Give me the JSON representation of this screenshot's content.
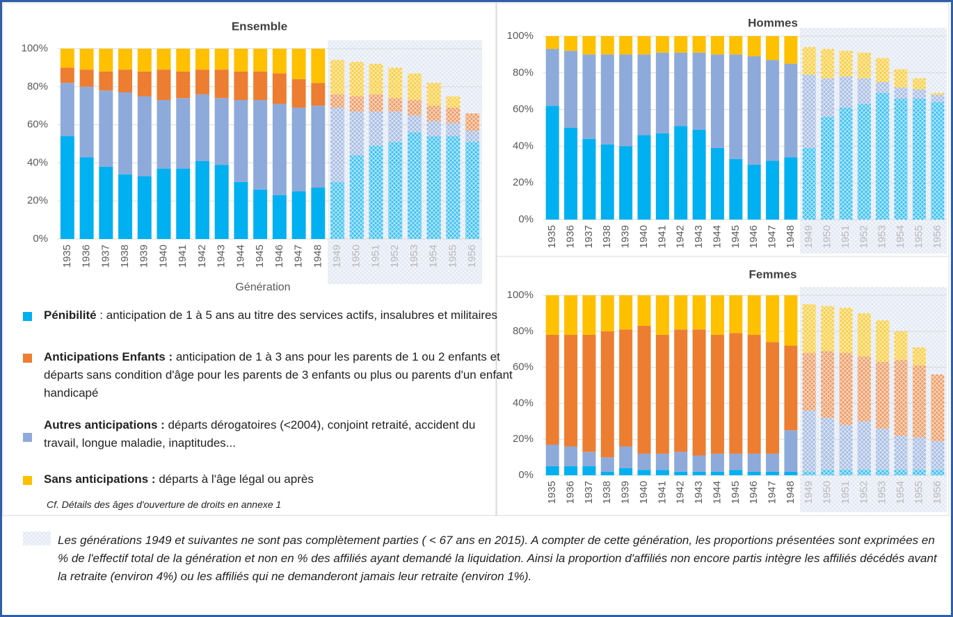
{
  "charts": [
    {
      "type": "stacked_bar",
      "title": "Ensemble",
      "xlabel": "Génération",
      "categories": [
        "1935",
        "1936",
        "1937",
        "1938",
        "1939",
        "1940",
        "1941",
        "1942",
        "1943",
        "1944",
        "1945",
        "1946",
        "1947",
        "1948",
        "1949",
        "1950",
        "1951",
        "1952",
        "1953",
        "1954",
        "1955",
        "1956"
      ],
      "hatched": [
        false,
        false,
        false,
        false,
        false,
        false,
        false,
        false,
        false,
        false,
        false,
        false,
        false,
        false,
        true,
        true,
        true,
        true,
        true,
        true,
        true,
        true
      ],
      "ylim": [
        0,
        100
      ],
      "yticks": [
        {
          "value": 0,
          "label": "0%"
        },
        {
          "value": 20,
          "label": "20%"
        },
        {
          "value": 40,
          "label": "40%"
        },
        {
          "value": 60,
          "label": "60%"
        },
        {
          "value": 80,
          "label": "80%"
        },
        {
          "value": 100,
          "label": "100%"
        }
      ],
      "grid": true,
      "series": [
        {
          "color": "#00b0f0",
          "values": [
            54,
            43,
            38,
            34,
            33,
            37,
            37,
            41,
            39,
            30,
            26,
            23,
            25,
            27,
            30,
            44,
            49,
            51,
            56,
            54,
            54,
            51
          ]
        },
        {
          "color": "#8eaadb",
          "values": [
            28,
            37,
            40,
            43,
            42,
            36,
            37,
            35,
            35,
            43,
            47,
            48,
            44,
            43,
            39,
            23,
            18,
            16,
            9,
            8,
            7,
            6
          ]
        },
        {
          "color": "#ed7d31",
          "values": [
            8,
            9,
            10,
            12,
            13,
            16,
            14,
            13,
            15,
            15,
            15,
            16,
            15,
            12,
            7,
            8,
            9,
            7,
            8,
            8,
            8,
            9
          ]
        },
        {
          "color": "#ffc000",
          "values": [
            10,
            11,
            12,
            11,
            12,
            11,
            12,
            11,
            11,
            12,
            12,
            13,
            16,
            18,
            18,
            18,
            16,
            16,
            14,
            12,
            6,
            0
          ]
        }
      ]
    },
    {
      "type": "stacked_bar",
      "title": "Hommes",
      "categories": [
        "1935",
        "1936",
        "1937",
        "1938",
        "1939",
        "1940",
        "1941",
        "1942",
        "1943",
        "1944",
        "1945",
        "1946",
        "1947",
        "1948",
        "1949",
        "1950",
        "1951",
        "1952",
        "1953",
        "1954",
        "1955",
        "1956"
      ],
      "hatched": [
        false,
        false,
        false,
        false,
        false,
        false,
        false,
        false,
        false,
        false,
        false,
        false,
        false,
        false,
        true,
        true,
        true,
        true,
        true,
        true,
        true,
        true
      ],
      "ylim": [
        0,
        100
      ],
      "yticks": [
        {
          "value": 0,
          "label": "0%"
        },
        {
          "value": 20,
          "label": "20%"
        },
        {
          "value": 40,
          "label": "40%"
        },
        {
          "value": 60,
          "label": "60%"
        },
        {
          "value": 80,
          "label": "80%"
        },
        {
          "value": 100,
          "label": "100%"
        }
      ],
      "grid": true,
      "series": [
        {
          "color": "#00b0f0",
          "values": [
            62,
            50,
            44,
            41,
            40,
            46,
            47,
            51,
            49,
            39,
            33,
            30,
            32,
            34,
            39,
            56,
            61,
            63,
            69,
            66,
            66,
            64
          ]
        },
        {
          "color": "#8eaadb",
          "values": [
            31,
            42,
            46,
            49,
            50,
            44,
            44,
            40,
            42,
            51,
            57,
            59,
            55,
            51,
            40,
            21,
            17,
            14,
            6,
            6,
            5,
            4
          ]
        },
        {
          "color": "#ed7d31",
          "values": [
            0,
            0,
            0,
            0,
            0,
            0,
            0,
            0,
            0,
            0,
            0,
            0,
            0,
            0,
            0,
            0,
            0,
            0,
            0,
            0,
            0,
            0
          ]
        },
        {
          "color": "#ffc000",
          "values": [
            7,
            8,
            10,
            10,
            10,
            10,
            9,
            9,
            9,
            10,
            10,
            11,
            13,
            15,
            15,
            16,
            14,
            14,
            13,
            10,
            6,
            1
          ]
        }
      ]
    },
    {
      "type": "stacked_bar",
      "title": "Femmes",
      "categories": [
        "1935",
        "1936",
        "1937",
        "1938",
        "1939",
        "1940",
        "1941",
        "1942",
        "1943",
        "1944",
        "1945",
        "1946",
        "1947",
        "1948",
        "1949",
        "1950",
        "1951",
        "1952",
        "1953",
        "1954",
        "1955",
        "1956"
      ],
      "hatched": [
        false,
        false,
        false,
        false,
        false,
        false,
        false,
        false,
        false,
        false,
        false,
        false,
        false,
        false,
        true,
        true,
        true,
        true,
        true,
        true,
        true,
        true
      ],
      "ylim": [
        0,
        100
      ],
      "yticks": [
        {
          "value": 0,
          "label": "0%"
        },
        {
          "value": 20,
          "label": "20%"
        },
        {
          "value": 40,
          "label": "40%"
        },
        {
          "value": 60,
          "label": "60%"
        },
        {
          "value": 80,
          "label": "80%"
        },
        {
          "value": 100,
          "label": "100%"
        }
      ],
      "grid": true,
      "series": [
        {
          "color": "#00b0f0",
          "values": [
            5,
            5,
            5,
            2,
            4,
            3,
            3,
            2,
            2,
            2,
            3,
            2,
            2,
            2,
            2,
            3,
            3,
            3,
            3,
            3,
            3,
            3
          ]
        },
        {
          "color": "#8eaadb",
          "values": [
            12,
            11,
            8,
            8,
            12,
            9,
            9,
            11,
            9,
            10,
            9,
            10,
            10,
            23,
            34,
            29,
            25,
            27,
            23,
            19,
            18,
            16
          ]
        },
        {
          "color": "#ed7d31",
          "values": [
            61,
            62,
            65,
            70,
            65,
            71,
            66,
            68,
            70,
            66,
            67,
            66,
            62,
            47,
            32,
            37,
            40,
            36,
            37,
            42,
            40,
            37
          ]
        },
        {
          "color": "#ffc000",
          "values": [
            22,
            22,
            22,
            20,
            19,
            17,
            22,
            19,
            19,
            22,
            21,
            22,
            26,
            28,
            27,
            25,
            25,
            24,
            23,
            16,
            10,
            0
          ]
        }
      ]
    }
  ],
  "legend": [
    {
      "name": "Pénibilité",
      "description": " : anticipation de 1 à 5 ans au titre des services actifs, insalubres et militaires",
      "color": "#00b0f0"
    },
    {
      "name": "Anticipations Enfants :",
      "description": " anticipation de 1 à 3 ans pour les parents de 1 ou 2 enfants et départs sans condition d'âge pour les parents de 3 enfants ou plus ou parents d'un enfant handicapé",
      "color": "#ed7d31"
    },
    {
      "name": "Autres anticipations :",
      "description": " départs dérogatoires (<2004), conjoint retraité, accident du travail, longue maladie, inaptitudes...",
      "color": "#8eaadb"
    },
    {
      "name": "Sans anticipations :",
      "description": " départs à l'âge légal ou après",
      "color": "#ffc000"
    }
  ],
  "legend_note": "Cf. Détails des âges d'ouverture de droits en annexe 1",
  "footnote": "Les générations 1949 et suivantes ne sont pas complètement parties ( < 67 ans en 2015). A compter de cette génération, les proportions présentées sont exprimées en % de l'effectif total de la génération et non en % des affiliés ayant demandé la liquidation. Ainsi la proportion d'affiliés non encore partis intègre les affiliés décédés avant la retraite (environ 4%) ou les affiliés qui ne demanderont jamais leur retraite (environ 1%)."
}
